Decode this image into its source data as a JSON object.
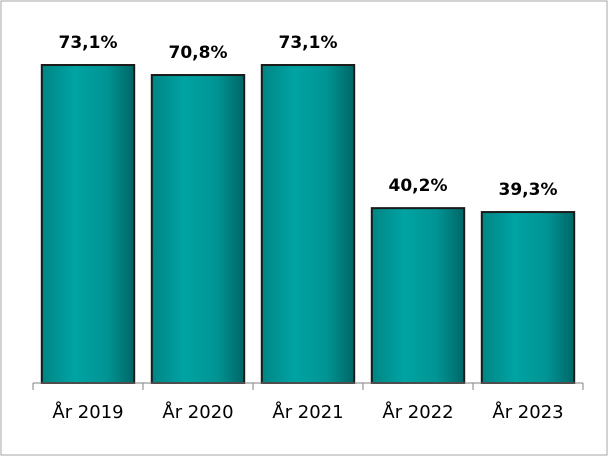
{
  "chart_data": {
    "type": "bar",
    "categories": [
      "År 2019",
      "År 2020",
      "År 2021",
      "År 2022",
      "År 2023"
    ],
    "values": [
      73.1,
      70.8,
      73.1,
      40.2,
      39.3
    ],
    "value_labels": [
      "73,1%",
      "70,8%",
      "73,1%",
      "40,2%",
      "39,3%"
    ],
    "color": "#009999",
    "ylim": [
      0,
      80
    ]
  }
}
